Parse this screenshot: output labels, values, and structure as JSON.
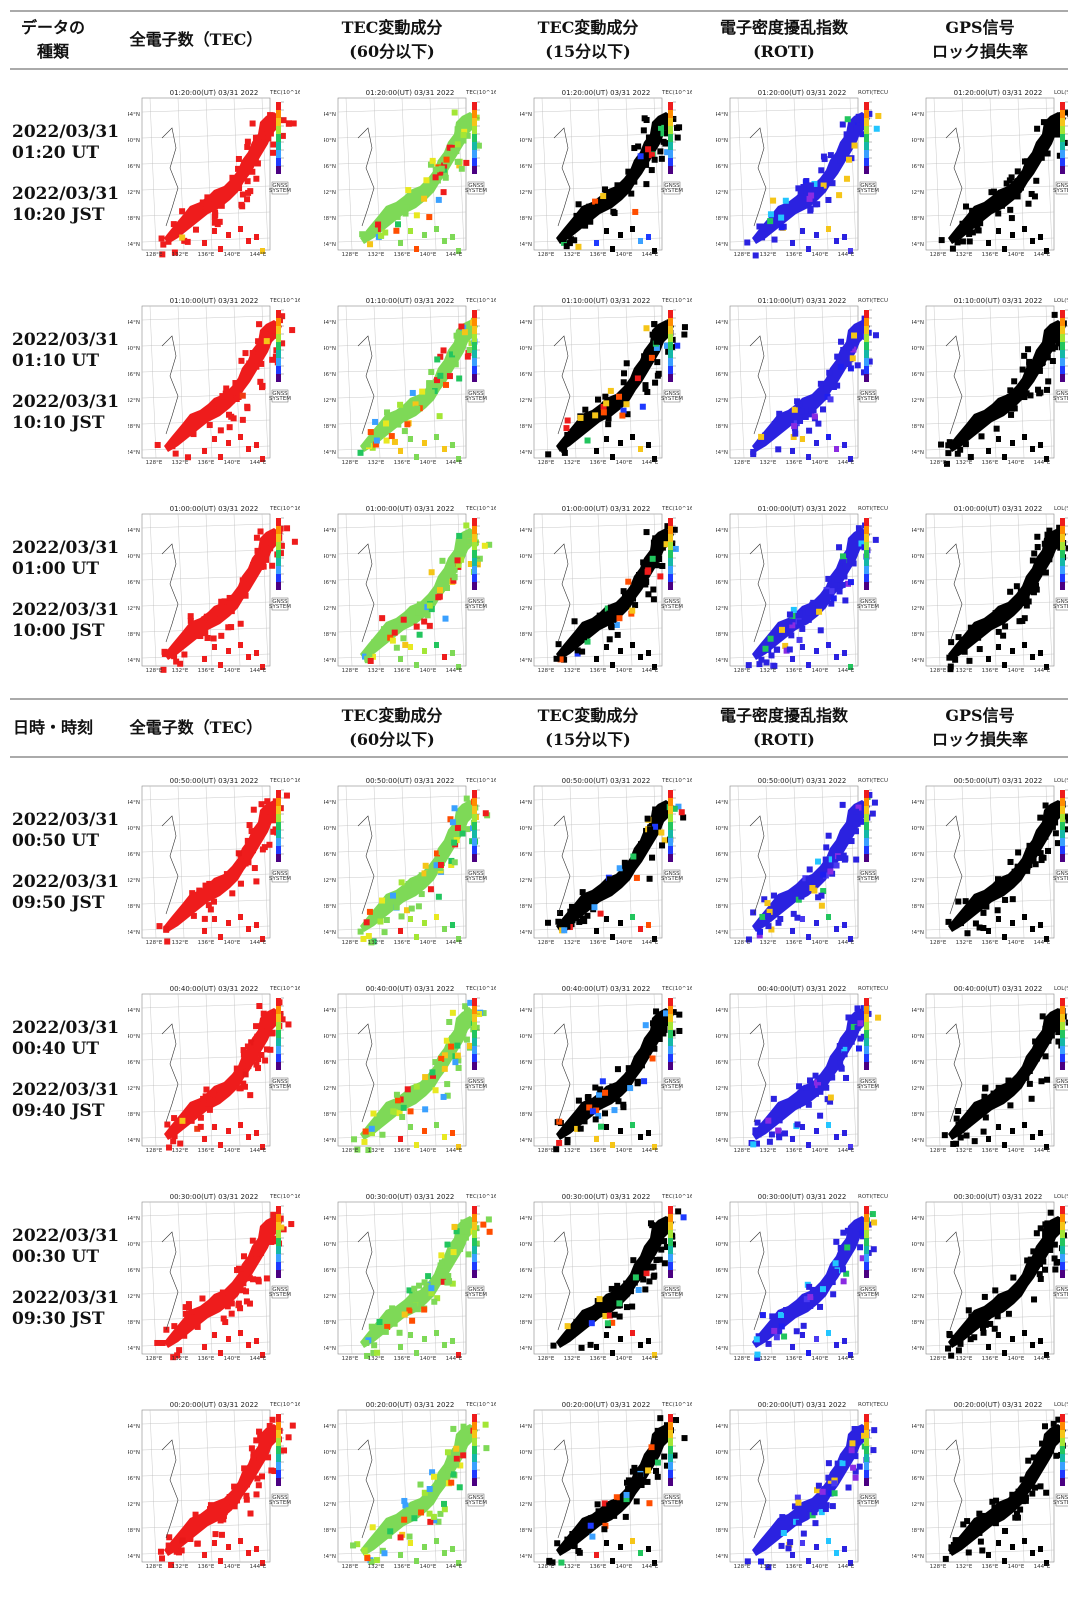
{
  "header_top": {
    "col0": [
      "データの",
      "種類"
    ],
    "col1": [
      "全電子数（TEC）"
    ],
    "col2": [
      "TEC変動成分",
      "(60分以下)"
    ],
    "col3": [
      "TEC変動成分",
      "(15分以下)"
    ],
    "col4": [
      "電子密度擾乱指数",
      "(ROTI)"
    ],
    "col5": [
      "GPS信号",
      "ロック損失率"
    ]
  },
  "header_mid": {
    "col0": [
      "日時・時刻"
    ],
    "col1": [
      "全電子数（TEC）"
    ],
    "col2": [
      "TEC変動成分",
      "(60分以下)"
    ],
    "col3": [
      "TEC変動成分",
      "(15分以下)"
    ],
    "col4": [
      "電子密度擾乱指数",
      "(ROTI)"
    ],
    "col5": [
      "GPS信号",
      "ロック損失率"
    ]
  },
  "rows": [
    {
      "date_ut": "2022/03/31",
      "time_ut": "01:20 UT",
      "date_jst": "2022/03/31",
      "time_jst": "10:20 JST",
      "map_title": "01:20:00(UT) 03/31 2022"
    },
    {
      "date_ut": "2022/03/31",
      "time_ut": "01:10 UT",
      "date_jst": "2022/03/31",
      "time_jst": "10:10 JST",
      "map_title": "01:10:00(UT) 03/31 2022"
    },
    {
      "date_ut": "2022/03/31",
      "time_ut": "01:00 UT",
      "date_jst": "2022/03/31",
      "time_jst": "10:00 JST",
      "map_title": "01:00:00(UT) 03/31 2022"
    },
    {
      "date_ut": "2022/03/31",
      "time_ut": "00:50 UT",
      "date_jst": "2022/03/31",
      "time_jst": "09:50 JST",
      "map_title": "00:50:00(UT) 03/31 2022"
    },
    {
      "date_ut": "2022/03/31",
      "time_ut": "00:40 UT",
      "date_jst": "2022/03/31",
      "time_jst": "09:40 JST",
      "map_title": "00:40:00(UT) 03/31 2022"
    },
    {
      "date_ut": "2022/03/31",
      "time_ut": "00:30 UT",
      "date_jst": "2022/03/31",
      "time_jst": "09:30 JST",
      "map_title": "00:30:00(UT) 03/31 2022"
    },
    {
      "date_ut": "",
      "time_ut": "",
      "date_jst": "",
      "time_jst": "",
      "map_title": "00:20:00(UT) 03/31 2022"
    }
  ],
  "map_axes": {
    "lat_ticks": [
      "44°N",
      "40°N",
      "36°N",
      "32°N",
      "28°N",
      "24°N"
    ],
    "lon_ticks": [
      "128°E",
      "132°E",
      "136°E",
      "140°E",
      "144°E"
    ],
    "badge": [
      "GNSS",
      "SYSTEM"
    ]
  },
  "map_types": [
    {
      "key": "tec",
      "unit": "TEC(10^16/m^2)",
      "color": "#ee1c1c"
    },
    {
      "key": "dtec60",
      "unit": "TEC(10^16/m^2)",
      "color": "#6fcf3a"
    },
    {
      "key": "dtec15",
      "unit": "TEC(10^16/m^2)",
      "color": "#000000"
    },
    {
      "key": "roti",
      "unit": "ROTI(TECU/min)",
      "color": "#2b22e0"
    },
    {
      "key": "lol",
      "unit": "LOL(%)",
      "color": "#000000"
    }
  ]
}
